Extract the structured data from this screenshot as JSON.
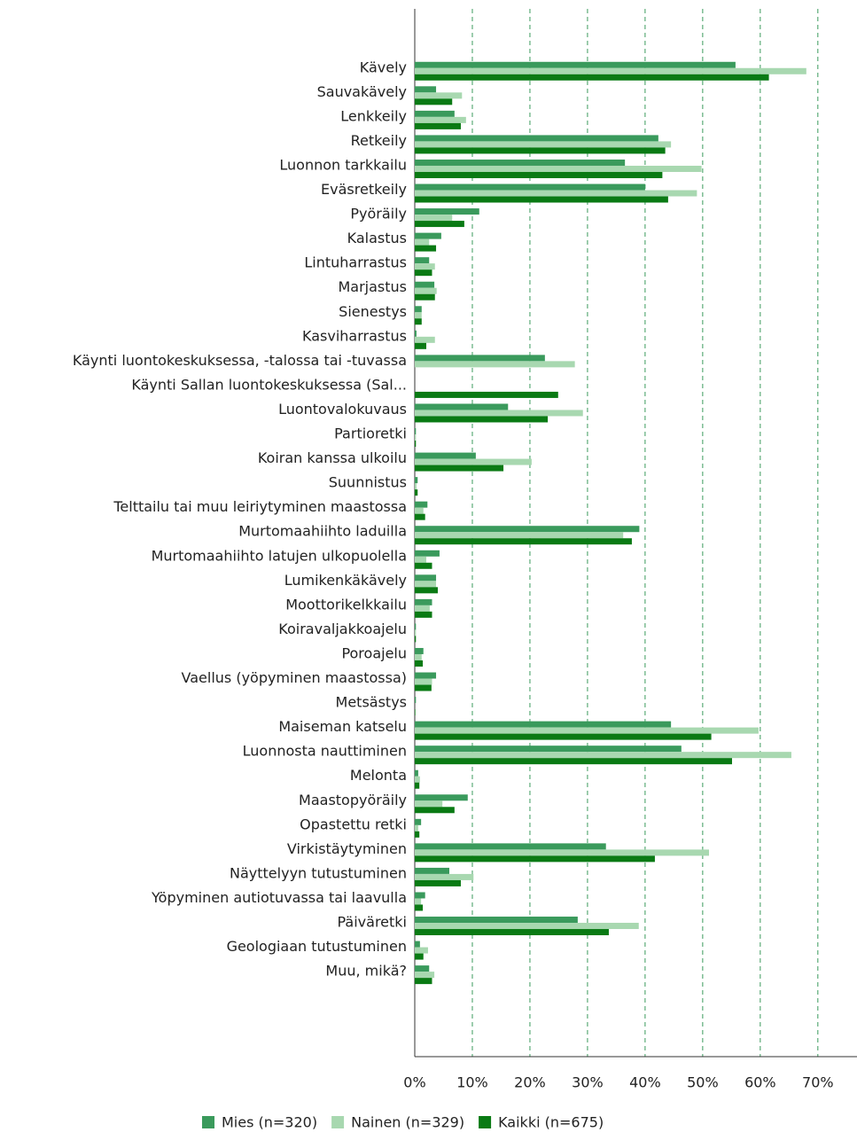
{
  "chart_data": {
    "type": "hbar",
    "categories": [
      "Kävely",
      "Sauvakävely",
      "Lenkkeily",
      "Retkeily",
      "Luonnon tarkkailu",
      "Eväsretkeily",
      "Pyöräily",
      "Kalastus",
      "Lintuharrastus",
      "Marjastus",
      "Sienestys",
      "Kasviharrastus",
      "Käynti luontokeskuksessa, -talossa tai -tuvassa",
      "Käynti Sallan luontokeskuksessa (Sal...",
      "Luontovalokuvaus",
      "Partioretki",
      "Koiran kanssa ulkoilu",
      "Suunnistus",
      "Telttailu tai muu leiriytyminen maastossa",
      "Murtomaahiihto laduilla",
      "Murtomaahiihto latujen ulkopuolella",
      "Lumikenkäkävely",
      "Moottorikelkkailu",
      "Koiravaljakkoajelu",
      "Poroajelu",
      "Vaellus (yöpyminen maastossa)",
      "Metsästys",
      "Maiseman katselu",
      "Luonnosta nauttiminen",
      "Melonta",
      "Maastopyöräily",
      "Opastettu retki",
      "Virkistäytyminen",
      "Näyttelyyn tutustuminen",
      "Yöpyminen autiotuvassa tai laavulla",
      "Päiväretki",
      "Geologiaan tutustuminen",
      "Muu, mikä?"
    ],
    "series": [
      {
        "name": "Mies (n=320)",
        "color": "#3a9a5c",
        "values": [
          55.7,
          3.7,
          6.9,
          42.3,
          36.5,
          40,
          11.2,
          4.6,
          2.5,
          3.4,
          1.2,
          0.3,
          22.6,
          null,
          16.2,
          0.2,
          10.6,
          0.5,
          2.2,
          39,
          4.3,
          3.7,
          3,
          0.2,
          1.5,
          3.7,
          0.2,
          44.5,
          46.3,
          0.6,
          9.2,
          1.1,
          33.2,
          6,
          1.8,
          28.3,
          0.9,
          2.5
        ]
      },
      {
        "name": "Nainen (n=329)",
        "color": "#a8d8b0",
        "values": [
          68,
          8.2,
          8.9,
          44.5,
          49.8,
          49,
          6.5,
          2.5,
          3.5,
          3.8,
          1.2,
          3.5,
          27.8,
          null,
          29.2,
          0.2,
          20.3,
          0.3,
          1.5,
          36.2,
          2,
          3.7,
          2.6,
          0.2,
          1.2,
          3,
          0,
          59.7,
          65.4,
          0.9,
          4.8,
          0.6,
          51.1,
          10.2,
          1.1,
          38.9,
          2.3,
          3.4
        ]
      },
      {
        "name": "Kaikki (n=675)",
        "color": "#0a7a14",
        "values": [
          61.5,
          6.5,
          8,
          43.5,
          43,
          44,
          8.6,
          3.7,
          3,
          3.5,
          1.2,
          2,
          null,
          24.9,
          23.1,
          0.2,
          15.4,
          0.5,
          1.8,
          37.7,
          3,
          4,
          3,
          0.2,
          1.4,
          2.9,
          0.1,
          51.5,
          55.1,
          0.8,
          6.9,
          0.8,
          41.7,
          8,
          1.4,
          33.7,
          1.5,
          3
        ]
      }
    ],
    "xlim": [
      0,
      76.8
    ],
    "xticks": [
      {
        "value": 0,
        "label": "0%"
      },
      {
        "value": 10,
        "label": "10%"
      },
      {
        "value": 20,
        "label": "20%"
      },
      {
        "value": 30,
        "label": "30%"
      },
      {
        "value": 40,
        "label": "40%"
      },
      {
        "value": 50,
        "label": "50%"
      },
      {
        "value": 60,
        "label": "60%"
      },
      {
        "value": 70,
        "label": "70%"
      }
    ],
    "grid": true
  }
}
